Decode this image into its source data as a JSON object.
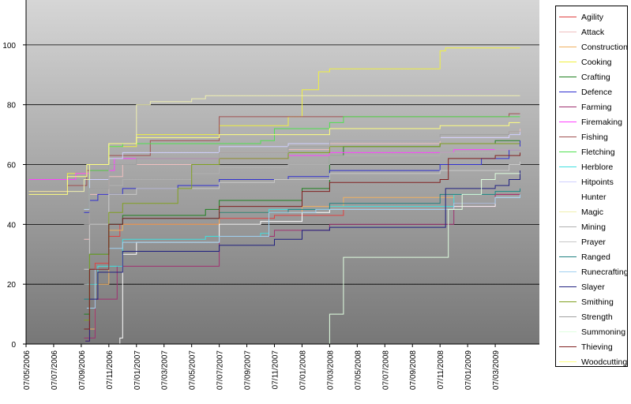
{
  "chart_data": {
    "type": "line",
    "step": true,
    "y_ticks": [
      "0",
      "20",
      "40",
      "60",
      "80",
      "100"
    ],
    "ylim": [
      0,
      115
    ],
    "x_ticks": [
      "07/05/2006",
      "07/07/2006",
      "07/09/2006",
      "07/11/2006",
      "07/01/2007",
      "07/03/2007",
      "07/05/2007",
      "07/07/2007",
      "07/09/2007",
      "07/11/2007",
      "07/01/2008",
      "07/03/2008",
      "07/05/2008",
      "07/07/2008",
      "07/09/2008",
      "07/11/2008",
      "07/01/2009",
      "07/03/2009"
    ],
    "xlim": [
      0,
      18.6
    ],
    "grid": true,
    "legend_position": "right",
    "series": [
      {
        "name": "Agility",
        "color": "#e04040",
        "points": [
          [
            2.15,
            1
          ],
          [
            2.3,
            20
          ],
          [
            2.5,
            27
          ],
          [
            3.0,
            36
          ],
          [
            3.4,
            40
          ],
          [
            7.0,
            42
          ],
          [
            9.0,
            43
          ],
          [
            11.5,
            45
          ],
          [
            15.5,
            47
          ],
          [
            17.0,
            50
          ],
          [
            17.9,
            50
          ]
        ]
      },
      {
        "name": "Attack",
        "color": "#f0c0c0",
        "points": [
          [
            2.1,
            35
          ],
          [
            2.3,
            50
          ],
          [
            3.0,
            56
          ],
          [
            3.5,
            60
          ],
          [
            7.0,
            64
          ],
          [
            9.5,
            65
          ],
          [
            11.0,
            67
          ],
          [
            15.0,
            69
          ],
          [
            17.5,
            71
          ],
          [
            17.9,
            72
          ]
        ]
      },
      {
        "name": "Construction",
        "color": "#f0b060",
        "points": [
          [
            2.2,
            5
          ],
          [
            2.5,
            20
          ],
          [
            3.0,
            38
          ],
          [
            3.5,
            40
          ],
          [
            7.0,
            44
          ],
          [
            10.0,
            46
          ],
          [
            11.5,
            49
          ],
          [
            15.5,
            50
          ],
          [
            17.0,
            51
          ],
          [
            17.9,
            51
          ]
        ]
      },
      {
        "name": "Cooking",
        "color": "#f0f040",
        "points": [
          [
            0.1,
            51
          ],
          [
            1.5,
            57
          ],
          [
            2.3,
            60
          ],
          [
            3.0,
            66
          ],
          [
            4.0,
            70
          ],
          [
            7.0,
            73
          ],
          [
            9.5,
            76
          ],
          [
            10.0,
            85
          ],
          [
            10.6,
            91
          ],
          [
            11.0,
            92
          ],
          [
            14.5,
            92
          ],
          [
            15.0,
            98
          ],
          [
            15.2,
            99
          ],
          [
            17.9,
            99
          ]
        ]
      },
      {
        "name": "Crafting",
        "color": "#208020",
        "points": [
          [
            2.1,
            10
          ],
          [
            2.3,
            30
          ],
          [
            3.0,
            40
          ],
          [
            3.5,
            43
          ],
          [
            6.5,
            45
          ],
          [
            7.0,
            48
          ],
          [
            10.0,
            52
          ],
          [
            11.0,
            63
          ],
          [
            11.5,
            66
          ],
          [
            15.0,
            67
          ],
          [
            17.0,
            68
          ],
          [
            17.9,
            68
          ]
        ]
      },
      {
        "name": "Defence",
        "color": "#3030d0",
        "points": [
          [
            2.1,
            44
          ],
          [
            2.3,
            48
          ],
          [
            2.6,
            50
          ],
          [
            3.5,
            52
          ],
          [
            5.5,
            53
          ],
          [
            7.0,
            55
          ],
          [
            9.5,
            56
          ],
          [
            11.0,
            58
          ],
          [
            15.0,
            60
          ],
          [
            16.5,
            62
          ],
          [
            17.5,
            65
          ],
          [
            17.9,
            68
          ]
        ]
      },
      {
        "name": "Farming",
        "color": "#a03070",
        "points": [
          [
            2.1,
            2
          ],
          [
            2.5,
            15
          ],
          [
            3.3,
            26
          ],
          [
            6.5,
            26
          ],
          [
            7.0,
            36
          ],
          [
            9.0,
            38
          ],
          [
            11.0,
            40
          ],
          [
            15.5,
            46
          ],
          [
            17.0,
            50
          ],
          [
            17.9,
            50
          ]
        ]
      },
      {
        "name": "Firemaking",
        "color": "#ff40ff",
        "points": [
          [
            0.1,
            55
          ],
          [
            1.8,
            57
          ],
          [
            2.3,
            58
          ],
          [
            3.2,
            62
          ],
          [
            4.0,
            62
          ],
          [
            7.0,
            62
          ],
          [
            9.5,
            63
          ],
          [
            11.0,
            64
          ],
          [
            15.5,
            65
          ],
          [
            17.9,
            66
          ]
        ]
      },
      {
        "name": "Fishing",
        "color": "#a05050",
        "points": [
          [
            0.1,
            51
          ],
          [
            1.5,
            53
          ],
          [
            2.2,
            58
          ],
          [
            3.0,
            63
          ],
          [
            4.5,
            68
          ],
          [
            6.8,
            68
          ],
          [
            7.0,
            76
          ],
          [
            11.0,
            76
          ],
          [
            15.5,
            76
          ],
          [
            17.5,
            77
          ],
          [
            17.9,
            77
          ]
        ]
      },
      {
        "name": "Fletching",
        "color": "#50e050",
        "points": [
          [
            2.1,
            45
          ],
          [
            2.3,
            58
          ],
          [
            3.0,
            66
          ],
          [
            3.5,
            67
          ],
          [
            7.0,
            67
          ],
          [
            8.5,
            68
          ],
          [
            9.0,
            72
          ],
          [
            11.0,
            74
          ],
          [
            11.5,
            76
          ],
          [
            15.0,
            76
          ],
          [
            17.9,
            76
          ]
        ]
      },
      {
        "name": "Herblore",
        "color": "#40e0e0",
        "points": [
          [
            2.2,
            20
          ],
          [
            2.6,
            26
          ],
          [
            3.5,
            35
          ],
          [
            6.5,
            36
          ],
          [
            8.5,
            37
          ],
          [
            8.8,
            45
          ],
          [
            11.0,
            46
          ],
          [
            15.5,
            50
          ],
          [
            17.0,
            51
          ],
          [
            17.9,
            51
          ]
        ]
      },
      {
        "name": "Hitpoints",
        "color": "#d0d0ff",
        "points": [
          [
            2.1,
            45
          ],
          [
            2.3,
            55
          ],
          [
            3.0,
            62
          ],
          [
            3.5,
            64
          ],
          [
            7.0,
            66
          ],
          [
            9.5,
            67
          ],
          [
            11.0,
            68
          ],
          [
            15.0,
            69
          ],
          [
            17.5,
            70
          ],
          [
            17.9,
            71
          ]
        ]
      },
      {
        "name": "Hunter",
        "color": "#ffffff",
        "points": [
          [
            3.35,
            0
          ],
          [
            3.4,
            2
          ],
          [
            3.5,
            30
          ],
          [
            4.0,
            34
          ],
          [
            7.0,
            40
          ],
          [
            8.5,
            41
          ],
          [
            10.0,
            44
          ],
          [
            11.0,
            45
          ],
          [
            15.5,
            46
          ],
          [
            17.0,
            49
          ],
          [
            17.9,
            49
          ]
        ]
      },
      {
        "name": "Magic",
        "color": "#f0f0b0",
        "points": [
          [
            0.1,
            51
          ],
          [
            2.1,
            55
          ],
          [
            2.3,
            60
          ],
          [
            3.0,
            67
          ],
          [
            4.0,
            80
          ],
          [
            4.5,
            81
          ],
          [
            6.0,
            82
          ],
          [
            6.5,
            83
          ],
          [
            11.0,
            83
          ],
          [
            15.0,
            83
          ],
          [
            17.9,
            83
          ]
        ]
      },
      {
        "name": "Mining",
        "color": "#b0b0b0",
        "points": [
          [
            2.1,
            20
          ],
          [
            2.3,
            40
          ],
          [
            3.0,
            53
          ],
          [
            3.5,
            55
          ],
          [
            6.0,
            57
          ],
          [
            7.0,
            59
          ],
          [
            9.5,
            60
          ],
          [
            11.0,
            63
          ],
          [
            15.0,
            64
          ],
          [
            17.0,
            65
          ],
          [
            17.9,
            66
          ]
        ]
      },
      {
        "name": "Prayer",
        "color": "#c8c8c8",
        "points": [
          [
            2.1,
            25
          ],
          [
            2.3,
            40
          ],
          [
            3.0,
            50
          ],
          [
            4.0,
            52
          ],
          [
            7.0,
            54
          ],
          [
            9.0,
            55
          ],
          [
            11.0,
            57
          ],
          [
            15.0,
            58
          ],
          [
            17.5,
            60
          ],
          [
            17.9,
            61
          ]
        ]
      },
      {
        "name": "Ranged",
        "color": "#208080",
        "points": [
          [
            2.1,
            15
          ],
          [
            2.3,
            30
          ],
          [
            3.0,
            40
          ],
          [
            3.5,
            42
          ],
          [
            7.0,
            44
          ],
          [
            9.5,
            45
          ],
          [
            11.0,
            47
          ],
          [
            15.0,
            50
          ],
          [
            17.0,
            51
          ],
          [
            17.9,
            52
          ]
        ]
      },
      {
        "name": "Runecrafting",
        "color": "#a0d0f0",
        "points": [
          [
            2.2,
            12
          ],
          [
            2.5,
            25
          ],
          [
            3.0,
            32
          ],
          [
            3.5,
            34
          ],
          [
            7.0,
            36
          ],
          [
            8.8,
            44
          ],
          [
            10.5,
            45
          ],
          [
            11.0,
            45
          ],
          [
            15.5,
            47
          ],
          [
            17.0,
            49
          ],
          [
            17.9,
            50
          ]
        ]
      },
      {
        "name": "Slayer",
        "color": "#202080",
        "points": [
          [
            2.15,
            1
          ],
          [
            2.3,
            15
          ],
          [
            2.6,
            24
          ],
          [
            3.5,
            31
          ],
          [
            6.0,
            31
          ],
          [
            7.0,
            33
          ],
          [
            9.0,
            35
          ],
          [
            10.0,
            38
          ],
          [
            11.0,
            39
          ],
          [
            15.0,
            39
          ],
          [
            15.2,
            52
          ],
          [
            17.0,
            53
          ],
          [
            17.5,
            55
          ],
          [
            17.9,
            58
          ]
        ]
      },
      {
        "name": "Smithing",
        "color": "#80a020",
        "points": [
          [
            2.1,
            8
          ],
          [
            2.3,
            30
          ],
          [
            3.0,
            44
          ],
          [
            3.5,
            47
          ],
          [
            5.5,
            52
          ],
          [
            6.0,
            60
          ],
          [
            7.0,
            62
          ],
          [
            9.5,
            64
          ],
          [
            11.0,
            66
          ],
          [
            15.0,
            67
          ],
          [
            17.9,
            67
          ]
        ]
      },
      {
        "name": "Strength",
        "color": "#a0a0a0",
        "points": [
          [
            2.1,
            40
          ],
          [
            2.3,
            52
          ],
          [
            3.0,
            60
          ],
          [
            4.0,
            62
          ],
          [
            7.0,
            64
          ],
          [
            9.5,
            66
          ],
          [
            11.0,
            68
          ],
          [
            15.0,
            70
          ],
          [
            17.5,
            71
          ],
          [
            17.9,
            71
          ]
        ]
      },
      {
        "name": "Summoning",
        "color": "#e0ffe0",
        "points": [
          [
            10.9,
            0
          ],
          [
            11.0,
            10
          ],
          [
            11.5,
            29
          ],
          [
            15.0,
            29
          ],
          [
            15.3,
            45
          ],
          [
            15.8,
            50
          ],
          [
            16.5,
            55
          ],
          [
            17.0,
            57
          ],
          [
            17.9,
            57
          ]
        ]
      },
      {
        "name": "Thieving",
        "color": "#802020",
        "points": [
          [
            2.1,
            5
          ],
          [
            2.3,
            25
          ],
          [
            3.0,
            40
          ],
          [
            3.5,
            42
          ],
          [
            7.0,
            46
          ],
          [
            10.0,
            51
          ],
          [
            11.0,
            54
          ],
          [
            15.0,
            55
          ],
          [
            15.3,
            62
          ],
          [
            17.0,
            63
          ],
          [
            17.9,
            64
          ]
        ]
      },
      {
        "name": "Woodcutting",
        "color": "#ffff80",
        "points": [
          [
            0.1,
            50
          ],
          [
            1.5,
            56
          ],
          [
            2.2,
            60
          ],
          [
            3.0,
            67
          ],
          [
            4.0,
            69
          ],
          [
            7.0,
            70
          ],
          [
            9.0,
            70
          ],
          [
            11.0,
            72
          ],
          [
            15.0,
            73
          ],
          [
            17.5,
            74
          ],
          [
            17.9,
            74
          ]
        ]
      }
    ]
  }
}
